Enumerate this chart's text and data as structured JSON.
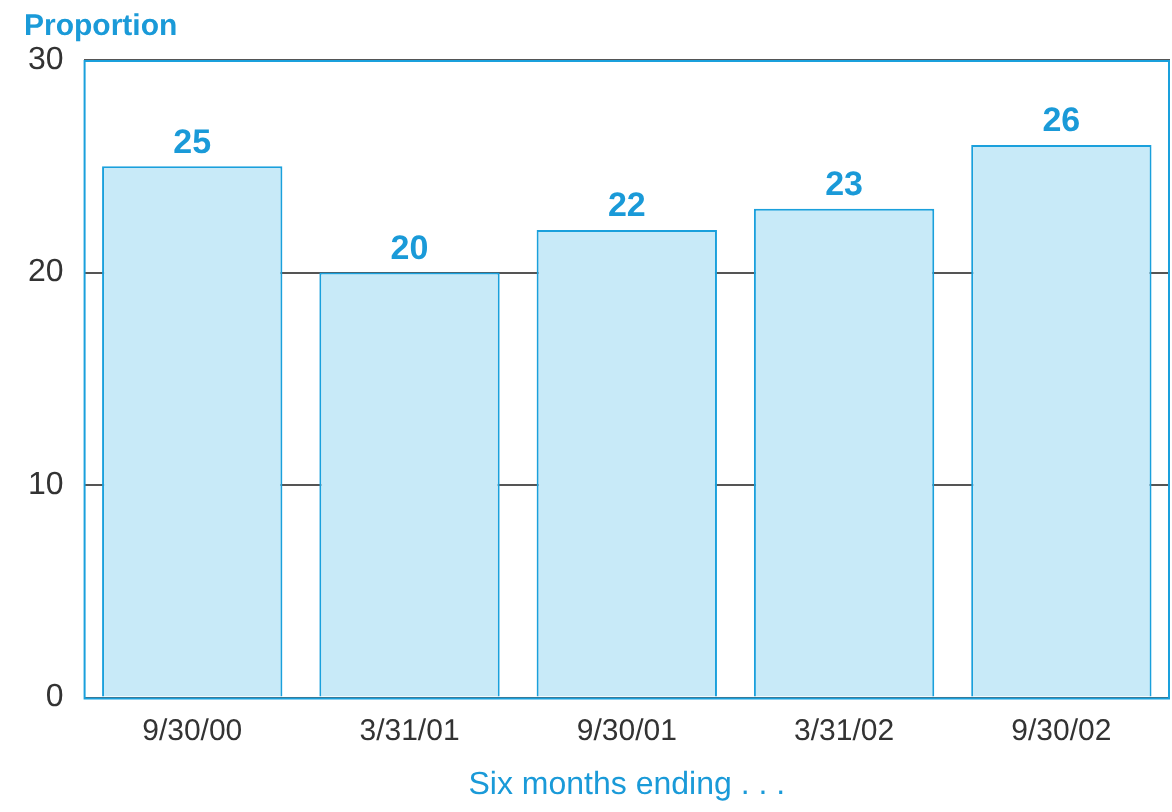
{
  "chart_data": {
    "type": "bar",
    "ylabel": "Proportion",
    "xlabel": "Six months ending . . .",
    "categories": [
      "9/30/00",
      "3/31/01",
      "9/30/01",
      "3/31/02",
      "9/30/02"
    ],
    "values": [
      25,
      20,
      22,
      23,
      26
    ],
    "color": "#c8eaf8",
    "ylim": [
      0,
      30
    ],
    "yticks": [
      0,
      10,
      20,
      30
    ],
    "grid": "y",
    "data_labels": true
  }
}
